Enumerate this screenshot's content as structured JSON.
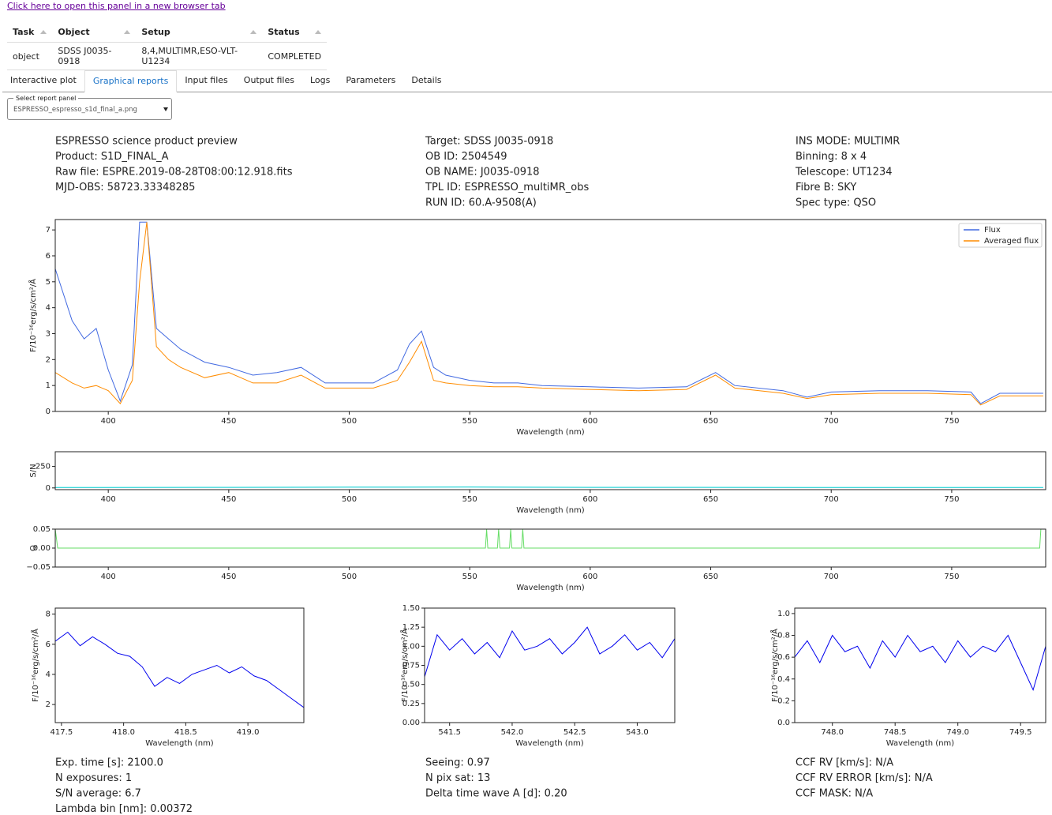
{
  "link": "Click here to open this panel in a new browser tab",
  "table": {
    "headers": [
      "Task",
      "Object",
      "Setup",
      "Status"
    ],
    "rows": [
      [
        "object",
        "SDSS J0035-0918",
        "8,4,MULTIMR,ESO-VLT-U1234",
        "COMPLETED"
      ]
    ]
  },
  "tabs": [
    "Interactive plot",
    "Graphical reports",
    "Input files",
    "Output files",
    "Logs",
    "Parameters",
    "Details"
  ],
  "active_tab": 1,
  "select": {
    "label": "Select report panel",
    "value": "ESPRESSO_espresso_s1d_final_a.png"
  },
  "header": [
    [
      "ESPRESSO science product preview",
      "Product: S1D_FINAL_A",
      "Raw file: ESPRE.2019-08-28T08:00:12.918.fits",
      "MJD-OBS: 58723.33348285"
    ],
    [
      "Target: SDSS J0035-0918",
      "OB ID: 2504549",
      "OB NAME: J0035-0918",
      "TPL ID: ESPRESSO_multiMR_obs",
      "RUN ID: 60.A-9508(A)"
    ],
    [
      "INS MODE: MULTIMR",
      "Binning: 8 x 4",
      "Telescope: UT1234",
      "Fibre B: SKY",
      "Spec type: QSO"
    ]
  ],
  "footer": [
    [
      "Exp. time [s]: 2100.0",
      "N exposures: 1",
      "S/N average: 6.7",
      "Lambda bin [nm]: 0.00372"
    ],
    [
      "Seeing: 0.97",
      "N pix sat: 13",
      "Delta time wave A [d]: 0.20"
    ],
    [
      "CCF RV [km/s]: N/A",
      "CCF RV ERROR [km/s]: N/A",
      "CCF MASK: N/A"
    ]
  ],
  "chart_data": [
    {
      "type": "line",
      "xlabel": "Wavelength (nm)",
      "ylabel": "F/10⁻¹⁶erg/s/cm²/Å",
      "legend": "upper right",
      "x": [
        378,
        385,
        390,
        395,
        400,
        405,
        410,
        413,
        416,
        420,
        425,
        430,
        440,
        450,
        460,
        470,
        480,
        490,
        500,
        510,
        520,
        525,
        530,
        535,
        540,
        550,
        560,
        570,
        580,
        600,
        620,
        640,
        652,
        660,
        680,
        690,
        700,
        720,
        740,
        758,
        762,
        770,
        788
      ],
      "series": [
        {
          "name": "Flux",
          "color": "#4169e1",
          "values": [
            5.5,
            3.5,
            2.8,
            3.2,
            1.6,
            0.4,
            1.8,
            7.3,
            7.3,
            3.2,
            2.8,
            2.4,
            1.9,
            1.7,
            1.4,
            1.5,
            1.7,
            1.1,
            1.1,
            1.1,
            1.6,
            2.6,
            3.1,
            1.7,
            1.4,
            1.2,
            1.1,
            1.1,
            1.0,
            0.95,
            0.9,
            0.95,
            1.5,
            1.0,
            0.8,
            0.55,
            0.75,
            0.8,
            0.8,
            0.75,
            0.3,
            0.7,
            0.7
          ]
        },
        {
          "name": "Averaged flux",
          "color": "#ff8c00",
          "values": [
            1.5,
            1.1,
            0.9,
            1.0,
            0.8,
            0.3,
            1.2,
            5.0,
            7.3,
            2.5,
            2.0,
            1.7,
            1.3,
            1.5,
            1.1,
            1.1,
            1.4,
            0.9,
            0.9,
            0.9,
            1.2,
            1.9,
            2.7,
            1.2,
            1.1,
            1.0,
            0.95,
            0.95,
            0.9,
            0.85,
            0.8,
            0.85,
            1.4,
            0.9,
            0.7,
            0.5,
            0.65,
            0.7,
            0.7,
            0.65,
            0.25,
            0.6,
            0.6
          ]
        }
      ],
      "xlim": [
        378,
        789
      ],
      "ylim": [
        0,
        7.4
      ],
      "xticks": [
        400,
        450,
        500,
        550,
        600,
        650,
        700,
        750
      ],
      "yticks": [
        0,
        1,
        2,
        3,
        4,
        5,
        6,
        7
      ]
    },
    {
      "type": "line",
      "xlabel": "Wavelength (nm)",
      "ylabel": "S/N",
      "x": [
        378,
        450,
        500,
        550,
        600,
        700,
        788
      ],
      "series": [
        {
          "color": "#00ced1",
          "values": [
            5,
            7,
            8,
            9,
            7,
            6,
            6
          ]
        }
      ],
      "xlim": [
        378,
        789
      ],
      "ylim": [
        -20,
        420
      ],
      "xticks": [
        400,
        450,
        500,
        550,
        600,
        650,
        700,
        750
      ],
      "yticks": [
        0,
        250
      ]
    },
    {
      "type": "line",
      "xlabel": "Wavelength (nm)",
      "ylabel": "Q",
      "x": [
        378,
        379,
        556.5,
        557,
        557.5,
        561.5,
        562,
        562.5,
        566.5,
        567,
        567.5,
        571.5,
        572,
        572.5,
        786.5,
        787
      ],
      "series": [
        {
          "color": "#66dd66",
          "values": [
            0.05,
            0,
            0,
            0.05,
            0,
            0,
            0.05,
            0,
            0,
            0.05,
            0,
            0,
            0.05,
            0,
            0,
            0.05
          ]
        }
      ],
      "xlim": [
        378,
        789
      ],
      "ylim": [
        -0.05,
        0.05
      ],
      "xticks": [
        400,
        450,
        500,
        550,
        600,
        650,
        700,
        750
      ],
      "yticks": [
        {
          "value": -0.05,
          "label": "−0.05"
        },
        {
          "value": 0,
          "label": "0.00"
        },
        0.05
      ]
    },
    {
      "type": "line",
      "xlabel": "Wavelength (nm)",
      "ylabel": "F/10⁻¹⁶erg/s/cm²/Å",
      "x": [
        417.45,
        417.55,
        417.65,
        417.75,
        417.85,
        417.95,
        418.05,
        418.15,
        418.25,
        418.35,
        418.45,
        418.55,
        418.65,
        418.75,
        418.85,
        418.95,
        419.05,
        419.15,
        419.25,
        419.35,
        419.45
      ],
      "series": [
        {
          "color": "#0000ee",
          "values": [
            6.2,
            6.8,
            5.9,
            6.5,
            6.0,
            5.4,
            5.2,
            4.5,
            3.2,
            3.8,
            3.4,
            4.0,
            4.3,
            4.6,
            4.1,
            4.5,
            3.9,
            3.6,
            3.0,
            2.4,
            1.8
          ]
        }
      ],
      "xlim": [
        417.45,
        419.45
      ],
      "ylim": [
        0.8,
        8.4
      ],
      "xticks": [
        417.5,
        {
          "value": 418,
          "label": "418.0"
        },
        418.5,
        {
          "value": 419,
          "label": "419.0"
        }
      ],
      "yticks": [
        2,
        4,
        6,
        8
      ]
    },
    {
      "type": "line",
      "xlabel": "Wavelength (nm)",
      "ylabel": "F/10⁻¹⁶erg/s/cm²/Å",
      "x": [
        541.3,
        541.4,
        541.5,
        541.6,
        541.7,
        541.8,
        541.9,
        542.0,
        542.1,
        542.2,
        542.3,
        542.4,
        542.5,
        542.6,
        542.7,
        542.8,
        542.9,
        543.0,
        543.1,
        543.2,
        543.3
      ],
      "series": [
        {
          "color": "#0000ee",
          "values": [
            0.6,
            1.15,
            0.95,
            1.1,
            0.9,
            1.05,
            0.85,
            1.2,
            0.95,
            1.0,
            1.1,
            0.9,
            1.05,
            1.25,
            0.9,
            1.0,
            1.15,
            0.95,
            1.05,
            0.85,
            1.1
          ]
        }
      ],
      "xlim": [
        541.3,
        543.3
      ],
      "ylim": [
        0,
        1.5
      ],
      "xticks": [
        541.5,
        {
          "value": 542,
          "label": "542.0"
        },
        542.5,
        {
          "value": 543,
          "label": "543.0"
        }
      ],
      "yticks": [
        {
          "value": 0,
          "label": "0.00"
        },
        0.25,
        {
          "value": 0.5,
          "label": "0.50"
        },
        0.75,
        {
          "value": 1,
          "label": "1.00"
        },
        1.25,
        {
          "value": 1.5,
          "label": "1.50"
        }
      ]
    },
    {
      "type": "line",
      "xlabel": "Wavelength (nm)",
      "ylabel": "F/10⁻¹⁶erg/s/cm²/Å",
      "x": [
        747.7,
        747.8,
        747.9,
        748.0,
        748.1,
        748.2,
        748.3,
        748.4,
        748.5,
        748.6,
        748.7,
        748.8,
        748.9,
        749.0,
        749.1,
        749.2,
        749.3,
        749.4,
        749.5,
        749.6,
        749.7
      ],
      "series": [
        {
          "color": "#0000ee",
          "values": [
            0.6,
            0.75,
            0.55,
            0.8,
            0.65,
            0.7,
            0.5,
            0.75,
            0.6,
            0.8,
            0.65,
            0.7,
            0.55,
            0.75,
            0.6,
            0.7,
            0.65,
            0.8,
            0.55,
            0.3,
            0.7
          ]
        }
      ],
      "xlim": [
        747.7,
        749.7
      ],
      "ylim": [
        0,
        1.05
      ],
      "xticks": [
        {
          "value": 748,
          "label": "748.0"
        },
        748.5,
        {
          "value": 749,
          "label": "749.0"
        },
        749.5
      ],
      "yticks": [
        {
          "value": 0,
          "label": "0.0"
        },
        0.2,
        0.4,
        0.6,
        0.8,
        {
          "value": 1,
          "label": "1.0"
        }
      ]
    }
  ]
}
